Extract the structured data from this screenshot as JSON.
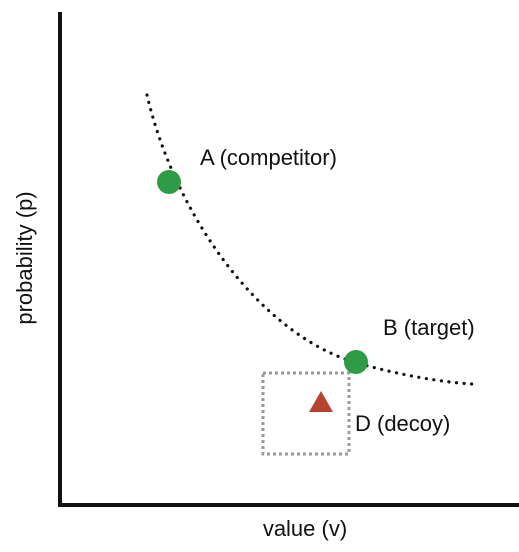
{
  "axes": {
    "x_label": "value (v)",
    "y_label": "probability (p)"
  },
  "points": {
    "competitor": {
      "label": "A (competitor)",
      "shape": "circle",
      "color": "#2e9b45"
    },
    "target": {
      "label": "B (target)",
      "shape": "circle",
      "color": "#2e9b45"
    },
    "decoy": {
      "label": "D (decoy)",
      "shape": "triangle",
      "color": "#b5432f"
    }
  },
  "curve": {
    "style": "dotted",
    "color": "#111111"
  },
  "decoy_region": {
    "style": "dotted",
    "color": "#9a9a9a"
  },
  "colors": {
    "axis": "#111111",
    "background": "#ffffff"
  }
}
